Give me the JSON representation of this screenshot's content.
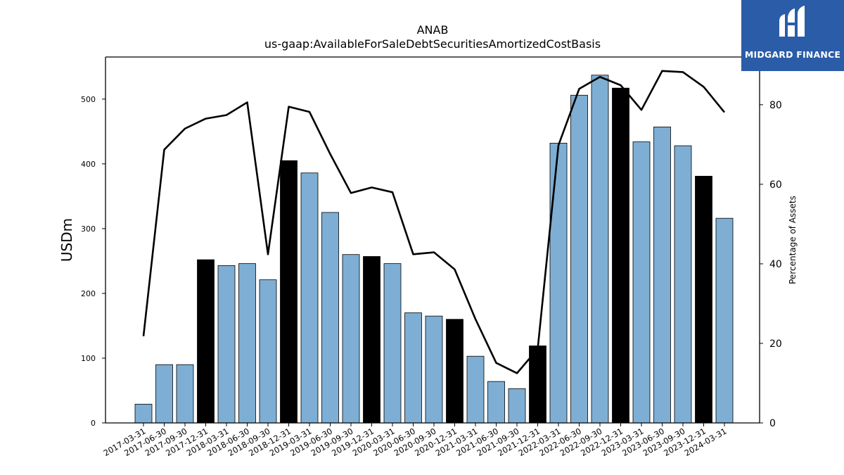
{
  "chart_data": {
    "type": "bar",
    "title": "ANAB",
    "subtitle": "us-gaap:AvailableForSaleDebtSecuritiesAmortizedCostBasis",
    "ylabel": "USDm",
    "y2label": "Percentage of Assets",
    "ylim": [
      0,
      565
    ],
    "y2lim": [
      0,
      92
    ],
    "yticks": [
      0,
      100,
      200,
      300,
      400,
      500
    ],
    "y2ticks": [
      0,
      20,
      40,
      60,
      80
    ],
    "categories": [
      "2017-03-31",
      "2017-06-30",
      "2017-09-30",
      "2017-12-31",
      "2018-03-31",
      "2018-06-30",
      "2018-09-30",
      "2018-12-31",
      "2019-03-31",
      "2019-06-30",
      "2019-09-30",
      "2019-12-31",
      "2020-03-31",
      "2020-06-30",
      "2020-09-30",
      "2020-12-31",
      "2021-03-31",
      "2021-06-30",
      "2021-09-30",
      "2021-12-31",
      "2022-03-31",
      "2022-06-30",
      "2022-09-30",
      "2022-12-31",
      "2023-03-31",
      "2023-06-30",
      "2023-09-30",
      "2023-12-31",
      "2024-03-31"
    ],
    "series": [
      {
        "type": "bar",
        "axis": "left",
        "values": [
          29,
          90,
          90,
          252,
          243,
          246,
          221,
          405,
          386,
          325,
          260,
          257,
          246,
          170,
          165,
          160,
          103,
          64,
          53,
          119,
          432,
          506,
          537,
          517,
          434,
          457,
          428,
          381,
          316
        ],
        "highlight": [
          false,
          false,
          false,
          true,
          false,
          false,
          false,
          true,
          false,
          false,
          false,
          true,
          false,
          false,
          false,
          true,
          false,
          false,
          false,
          true,
          false,
          false,
          false,
          true,
          false,
          false,
          false,
          true,
          false
        ]
      },
      {
        "type": "line",
        "axis": "right",
        "values": [
          21.8,
          68.7,
          74.0,
          76.5,
          77.4,
          80.6,
          42.4,
          79.5,
          78.2,
          67.6,
          57.8,
          59.2,
          58.0,
          42.4,
          42.9,
          38.6,
          26.1,
          15.1,
          12.5,
          18.6,
          69.8,
          84.0,
          87.0,
          84.9,
          78.7,
          88.5,
          88.2,
          84.5,
          78.1
        ]
      }
    ],
    "colors": {
      "bar": "#7eaed3",
      "bar_highlight": "#000000",
      "line": "#000000"
    },
    "grid": false,
    "legend": "none"
  },
  "logo": {
    "text": "MIDGARD FINANCE",
    "background": "#2b5ca8"
  }
}
